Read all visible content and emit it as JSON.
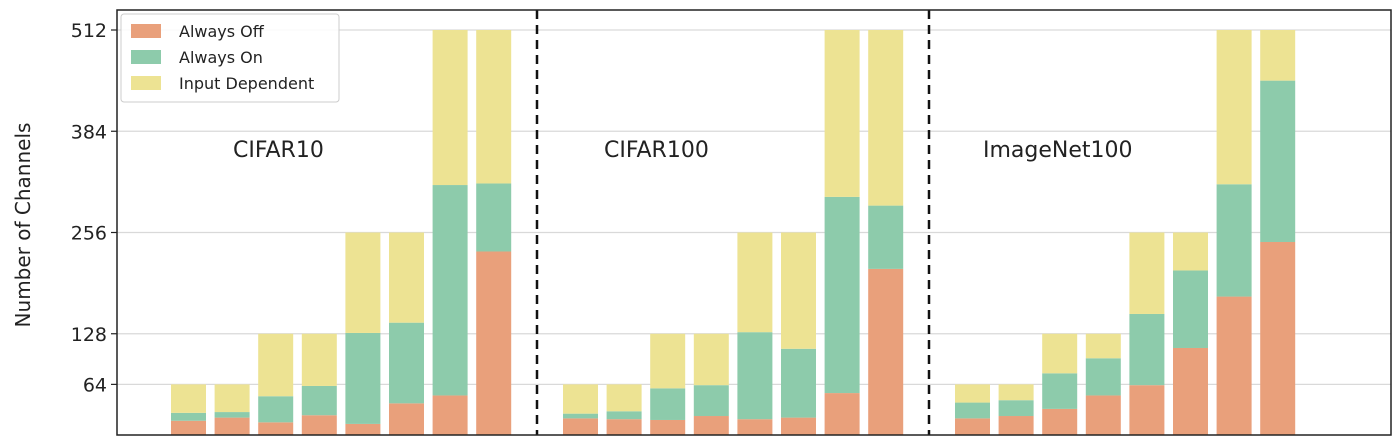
{
  "chart_data": {
    "type": "bar",
    "stacked": true,
    "ylabel": "Number of Channels",
    "ylim": [
      0,
      512
    ],
    "yticks": [
      64,
      128,
      256,
      384,
      512
    ],
    "grid": "horizontal",
    "legend": {
      "placement": "top-left",
      "entries": [
        {
          "name": "Always Off",
          "color": "#e9a07b"
        },
        {
          "name": "Always On",
          "color": "#8dcbab"
        },
        {
          "name": "Input Dependent",
          "color": "#ede393"
        }
      ]
    },
    "colors": {
      "always_off": "#e9a07b",
      "always_on": "#8dcbab",
      "input_dependent": "#ede393"
    },
    "groups": [
      {
        "label": "CIFAR10",
        "totals": [
          64,
          64,
          128,
          128,
          256,
          256,
          512,
          512
        ],
        "always_off": [
          18,
          22,
          16,
          25,
          14,
          40,
          50,
          232
        ],
        "always_on": [
          10,
          7,
          33,
          37,
          115,
          102,
          266,
          86
        ]
      },
      {
        "label": "CIFAR100",
        "totals": [
          64,
          64,
          128,
          128,
          256,
          256,
          512,
          512
        ],
        "always_off": [
          21,
          20,
          19,
          24,
          20,
          22,
          53,
          210
        ],
        "always_on": [
          6,
          10,
          40,
          39,
          110,
          87,
          248,
          80
        ]
      },
      {
        "label": "ImageNet100",
        "totals": [
          64,
          64,
          128,
          128,
          256,
          256,
          512,
          512
        ],
        "always_off": [
          21,
          24,
          33,
          50,
          63,
          110,
          175,
          244
        ],
        "always_on": [
          20,
          20,
          45,
          47,
          90,
          98,
          142,
          204
        ]
      }
    ]
  }
}
